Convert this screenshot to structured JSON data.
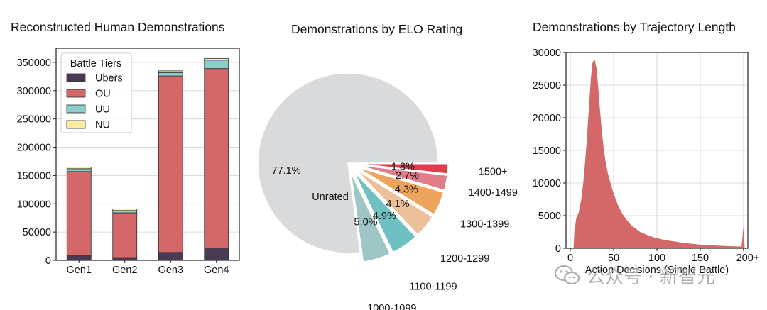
{
  "watermark": {
    "text": "公众号 · 新智元",
    "icon": "wechat-icon"
  },
  "chart_data": [
    {
      "type": "bar",
      "stacked": true,
      "title": "Reconstructed Human Demonstrations",
      "xlabel": "",
      "ylabel": "",
      "categories": [
        "Gen1",
        "Gen2",
        "Gen3",
        "Gen4"
      ],
      "ylim": [
        0,
        375000
      ],
      "yticks": [
        0,
        50000,
        100000,
        150000,
        200000,
        250000,
        300000,
        350000
      ],
      "ytick_labels": [
        "0",
        "50000",
        "100000",
        "150000",
        "200000",
        "250000",
        "300000",
        "350000"
      ],
      "grid": true,
      "legend": {
        "title": "Battle Tiers",
        "placement": "top-left"
      },
      "series": [
        {
          "name": "Ubers",
          "color": "#4a3b55",
          "values": [
            8000,
            5000,
            14000,
            22000
          ]
        },
        {
          "name": "OU",
          "color": "#d46768",
          "values": [
            149000,
            79000,
            312000,
            317000
          ]
        },
        {
          "name": "UU",
          "color": "#8ccdca",
          "values": [
            5000,
            4000,
            6000,
            15000
          ]
        },
        {
          "name": "NU",
          "color": "#fbed9e",
          "values": [
            3000,
            3000,
            3000,
            3000
          ]
        }
      ]
    },
    {
      "type": "pie",
      "title": "Demonstrations by ELO Rating",
      "slices": [
        {
          "label": "Unrated",
          "value": 77.1,
          "pct_label": "77.1%",
          "color": "#d9dadb",
          "explode": false
        },
        {
          "label": "1000-1099",
          "value": 5.0,
          "pct_label": "5.0%",
          "color": "#9fc6c6",
          "explode": true
        },
        {
          "label": "1100-1199",
          "value": 4.9,
          "pct_label": "4.9%",
          "color": "#6ec0c3",
          "explode": true
        },
        {
          "label": "1200-1299",
          "value": 4.1,
          "pct_label": "4.1%",
          "color": "#ecc199",
          "explode": true
        },
        {
          "label": "1300-1399",
          "value": 4.3,
          "pct_label": "4.3%",
          "color": "#eda35c",
          "explode": true
        },
        {
          "label": "1400-1499",
          "value": 2.7,
          "pct_label": "2.7%",
          "color": "#df7d88",
          "explode": true
        },
        {
          "label": "1500+",
          "value": 1.8,
          "pct_label": "1.8%",
          "color": "#e03c4c",
          "explode": true
        }
      ]
    },
    {
      "type": "area",
      "title": "Demonstrations by Trajectory Length",
      "xlabel": "Action Decisions (Single Battle)",
      "ylabel": "",
      "color": "#d46768",
      "xlim": [
        -5,
        205
      ],
      "ylim": [
        0,
        30000
      ],
      "xticks": [
        0,
        50,
        100,
        150,
        200
      ],
      "xtick_labels": [
        "0",
        "50",
        "100",
        "150",
        "200+"
      ],
      "yticks": [
        0,
        5000,
        10000,
        15000,
        20000,
        25000,
        30000
      ],
      "ytick_labels": [
        "0",
        "5000",
        "10000",
        "15000",
        "20000",
        "25000",
        "30000"
      ],
      "grid": true,
      "x": [
        4,
        5,
        7,
        10,
        13,
        16,
        19,
        22,
        24,
        26,
        28,
        30,
        32,
        34,
        36,
        38,
        40,
        43,
        46,
        50,
        55,
        60,
        65,
        70,
        80,
        90,
        100,
        110,
        120,
        130,
        140,
        150,
        160,
        170,
        180,
        190,
        198,
        199,
        200,
        201
      ],
      "y": [
        0,
        2500,
        4500,
        5500,
        7500,
        11000,
        16000,
        22000,
        26000,
        28500,
        28800,
        27500,
        24500,
        21000,
        18000,
        15500,
        13500,
        11500,
        10000,
        8200,
        6500,
        5200,
        4300,
        3500,
        2500,
        1900,
        1500,
        1200,
        1000,
        800,
        650,
        520,
        430,
        360,
        300,
        260,
        230,
        1500,
        3100,
        0
      ]
    }
  ]
}
